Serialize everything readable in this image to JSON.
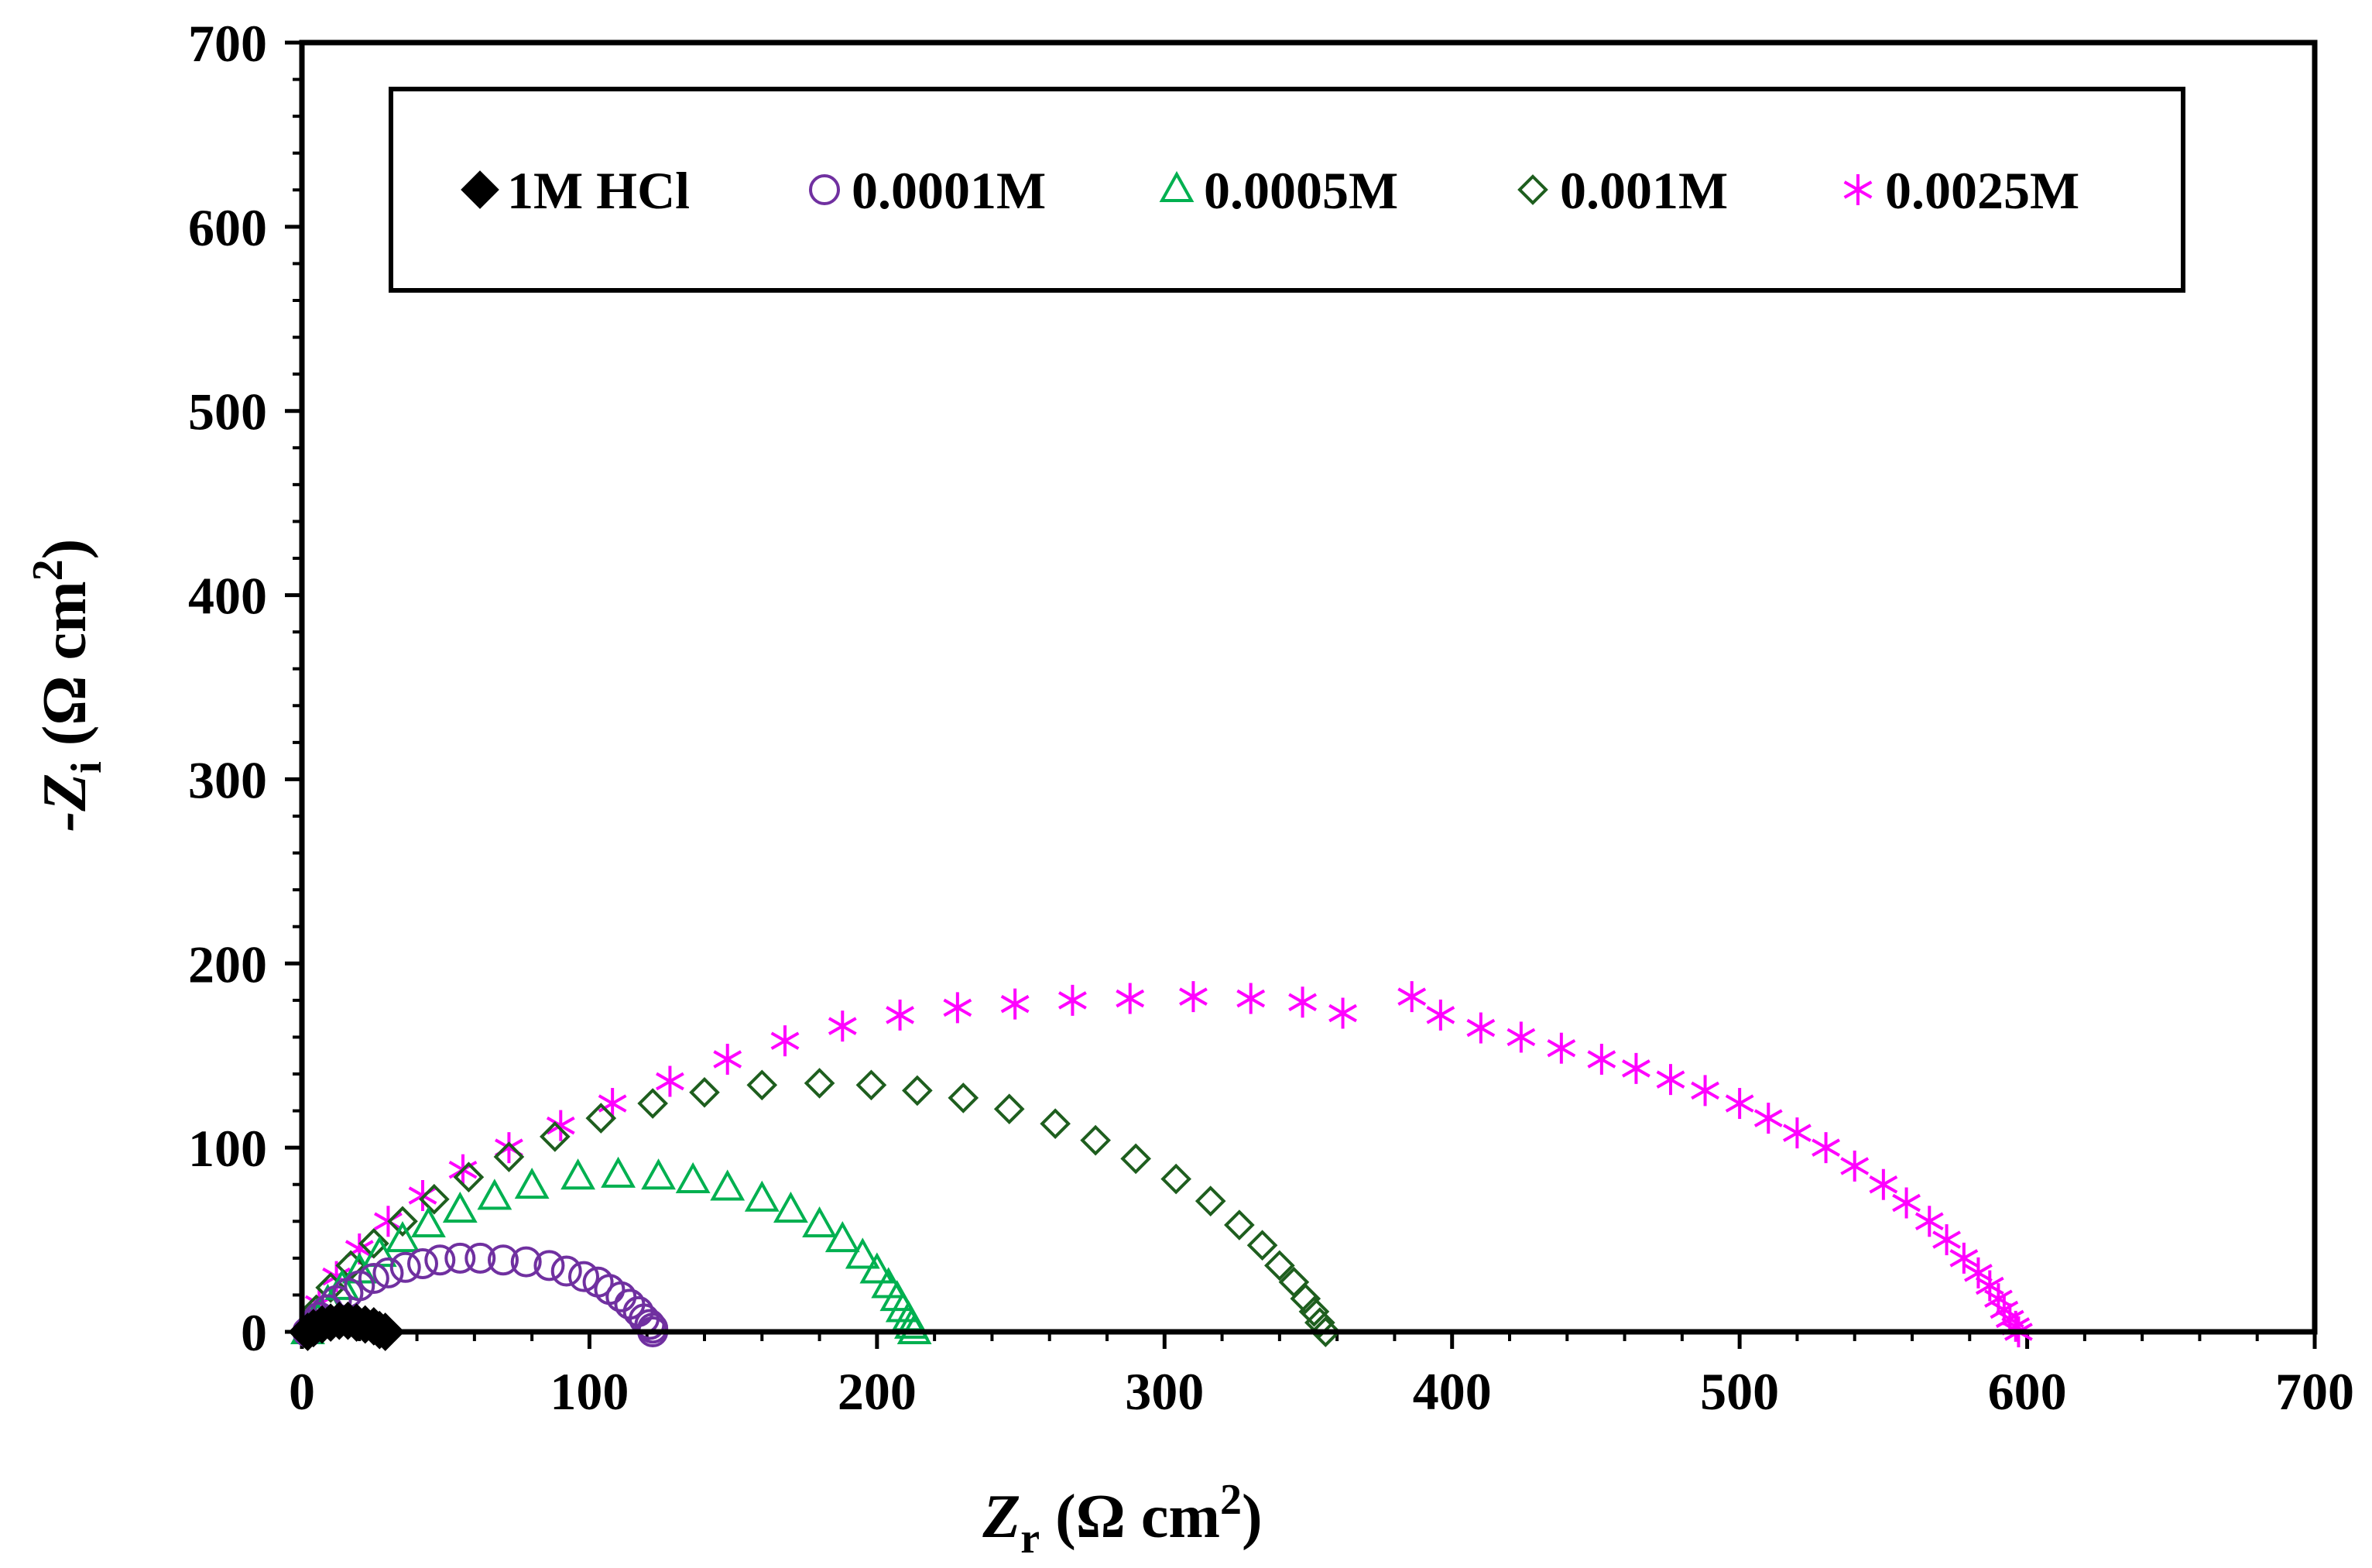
{
  "chart_data": {
    "type": "scatter",
    "title": "",
    "xlabel": {
      "main": "Z",
      "sub": "r",
      "unit_open": " (Ω cm",
      "sup": "2",
      "unit_close": ")"
    },
    "ylabel": {
      "prefix": "-Z",
      "sub": "i",
      "unit_open": " (Ω cm",
      "sup": "2",
      "unit_close": ")"
    },
    "xlim": [
      0,
      700
    ],
    "ylim": [
      0,
      700
    ],
    "xticks": [
      0,
      100,
      200,
      300,
      400,
      500,
      600,
      700
    ],
    "yticks": [
      0,
      100,
      200,
      300,
      400,
      500,
      600,
      700
    ],
    "xtick_labels": [
      "0",
      "100",
      "200",
      "300",
      "400",
      "500",
      "600",
      "700"
    ],
    "ytick_labels": [
      "0",
      "100",
      "200",
      "300",
      "400",
      "500",
      "600",
      "700"
    ],
    "grid": false,
    "legend_position": "top",
    "series": [
      {
        "name": "1M HCl",
        "marker": "diamond-filled",
        "color": "#000000",
        "x": [
          2,
          4,
          7,
          10,
          13,
          16,
          19,
          22,
          25,
          27,
          29
        ],
        "y": [
          0,
          2,
          4,
          5,
          6,
          6,
          5,
          4,
          3,
          1,
          0
        ]
      },
      {
        "name": "0.0001M",
        "marker": "circle-open",
        "color": "#7030A0",
        "x": [
          2,
          4,
          6,
          9,
          12,
          16,
          20,
          25,
          30,
          36,
          42,
          48,
          55,
          62,
          70,
          78,
          86,
          92,
          98,
          103,
          107,
          111,
          114,
          117,
          119,
          121,
          122,
          122
        ],
        "y": [
          0,
          4,
          8,
          12,
          17,
          21,
          25,
          29,
          32,
          35,
          37,
          39,
          40,
          40,
          39,
          38,
          36,
          33,
          30,
          27,
          23,
          19,
          15,
          11,
          7,
          4,
          2,
          0
        ]
      },
      {
        "name": "0.0005M",
        "marker": "triangle-open",
        "color": "#00B050",
        "x": [
          2,
          5,
          9,
          14,
          20,
          27,
          35,
          44,
          55,
          67,
          80,
          96,
          110,
          124,
          136,
          148,
          160,
          170,
          180,
          188,
          195,
          200,
          204,
          207,
          209,
          211,
          212,
          213
        ],
        "y": [
          0,
          8,
          16,
          24,
          33,
          42,
          50,
          58,
          66,
          73,
          79,
          84,
          85,
          84,
          82,
          78,
          72,
          66,
          58,
          50,
          41,
          33,
          25,
          18,
          12,
          7,
          3,
          0
        ]
      },
      {
        "name": "0.001M",
        "marker": "diamond-open",
        "color": "#1E5E1E",
        "x": [
          2,
          5,
          10,
          17,
          25,
          35,
          46,
          58,
          72,
          88,
          104,
          122,
          140,
          160,
          180,
          198,
          214,
          230,
          246,
          262,
          276,
          290,
          304,
          316,
          326,
          334,
          340,
          345,
          349,
          352,
          354,
          356
        ],
        "y": [
          0,
          12,
          24,
          36,
          48,
          60,
          72,
          84,
          95,
          106,
          116,
          124,
          130,
          134,
          135,
          134,
          131,
          127,
          121,
          113,
          104,
          94,
          83,
          71,
          58,
          47,
          36,
          27,
          18,
          11,
          5,
          0
        ]
      },
      {
        "name": "0.0025M",
        "marker": "star",
        "color": "#FF00FF",
        "x": [
          2,
          6,
          12,
          20,
          30,
          42,
          56,
          72,
          90,
          108,
          128,
          148,
          168,
          188,
          208,
          228,
          248,
          268,
          288,
          310,
          330,
          348,
          362,
          386,
          396,
          410,
          424,
          438,
          452,
          464,
          476,
          488,
          500,
          510,
          520,
          530,
          540,
          550,
          558,
          566,
          572,
          578,
          583,
          587,
          590,
          592,
          594,
          596,
          597
        ],
        "y": [
          0,
          15,
          30,
          45,
          60,
          74,
          88,
          100,
          112,
          124,
          136,
          148,
          158,
          166,
          172,
          176,
          178,
          180,
          181,
          182,
          181,
          179,
          173,
          182,
          172,
          165,
          160,
          154,
          148,
          143,
          137,
          131,
          124,
          116,
          108,
          100,
          90,
          80,
          70,
          60,
          50,
          40,
          32,
          25,
          18,
          12,
          7,
          3,
          0
        ]
      }
    ]
  }
}
